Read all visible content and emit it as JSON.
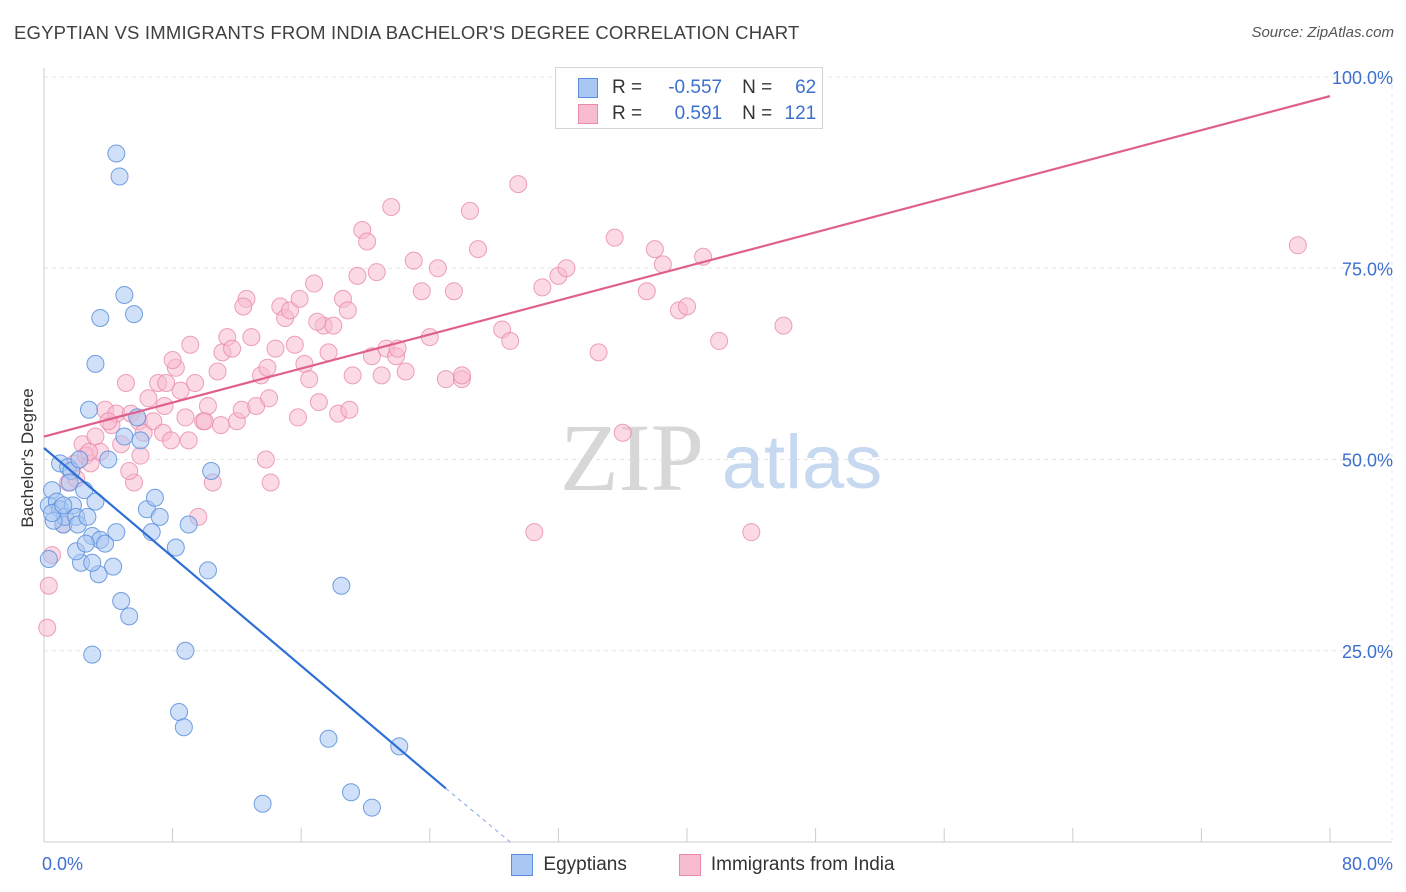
{
  "header": {
    "title": "EGYPTIAN VS IMMIGRANTS FROM INDIA BACHELOR'S DEGREE CORRELATION CHART",
    "source": "Source: ZipAtlas.com"
  },
  "watermark": {
    "zip": "ZIP",
    "atlas": "atlas"
  },
  "legend_top": {
    "rows": [
      {
        "r_label": "R =",
        "r_value": "-0.557",
        "n_label": "N =",
        "n_value": "62"
      },
      {
        "r_label": "R =",
        "r_value": "0.591",
        "n_label": "N =",
        "n_value": "121"
      }
    ]
  },
  "legend_bottom": {
    "items": [
      "Egyptians",
      "Immigrants from India"
    ]
  },
  "colors": {
    "blue_fill": "#a9c7f2",
    "blue_stroke": "#5b8fdc",
    "blue_line": "#2e6fd6",
    "pink_fill": "#f7bccf",
    "pink_stroke": "#e98aab",
    "pink_line": "#e0608c",
    "axis_label": "#3d6fcf",
    "grid": "#e6e6e6"
  },
  "chart_data": {
    "type": "scatter",
    "title": "EGYPTIAN VS IMMIGRANTS FROM INDIA BACHELOR'S DEGREE CORRELATION CHART",
    "xlabel": "",
    "ylabel": "Bachelor's Degree",
    "xlim": [
      0,
      80
    ],
    "ylim": [
      0,
      100
    ],
    "x_tick_labels": [
      "0.0%",
      "80.0%"
    ],
    "y_ticks": [
      25,
      50,
      75,
      100
    ],
    "y_tick_labels": [
      "25.0%",
      "50.0%",
      "75.0%",
      "100.0%"
    ],
    "grid": true,
    "series": [
      {
        "name": "Egyptians",
        "r": -0.557,
        "n": 62,
        "trend": {
          "x": [
            0,
            25.0
          ],
          "y": [
            51.5,
            7.0
          ],
          "dash_to": {
            "x": 29.0,
            "y": 0
          }
        },
        "points": [
          [
            0.3,
            44.0
          ],
          [
            0.5,
            46.0
          ],
          [
            0.8,
            44.5
          ],
          [
            1.0,
            43.5
          ],
          [
            1.2,
            41.5
          ],
          [
            1.3,
            42.5
          ],
          [
            0.6,
            42.0
          ],
          [
            1.0,
            49.5
          ],
          [
            1.5,
            49.0
          ],
          [
            1.7,
            48.5
          ],
          [
            1.8,
            44.0
          ],
          [
            1.6,
            47.0
          ],
          [
            2.0,
            42.5
          ],
          [
            2.1,
            41.5
          ],
          [
            2.3,
            36.5
          ],
          [
            2.5,
            46.0
          ],
          [
            2.0,
            38.0
          ],
          [
            2.7,
            42.5
          ],
          [
            2.2,
            50.0
          ],
          [
            3.0,
            40.0
          ],
          [
            3.2,
            44.5
          ],
          [
            3.4,
            35.0
          ],
          [
            3.5,
            39.5
          ],
          [
            3.8,
            39.0
          ],
          [
            3.0,
            36.5
          ],
          [
            4.0,
            50.0
          ],
          [
            4.3,
            36.0
          ],
          [
            4.5,
            40.5
          ],
          [
            4.8,
            31.5
          ],
          [
            5.0,
            53.0
          ],
          [
            5.3,
            29.5
          ],
          [
            5.8,
            55.5
          ],
          [
            6.0,
            52.5
          ],
          [
            6.4,
            43.5
          ],
          [
            6.7,
            40.5
          ],
          [
            6.9,
            45.0
          ],
          [
            7.2,
            42.5
          ],
          [
            8.2,
            38.5
          ],
          [
            8.4,
            17.0
          ],
          [
            8.7,
            15.0
          ],
          [
            8.8,
            25.0
          ],
          [
            9.0,
            41.5
          ],
          [
            10.2,
            35.5
          ],
          [
            10.4,
            48.5
          ],
          [
            2.8,
            56.5
          ],
          [
            3.2,
            62.5
          ],
          [
            3.5,
            68.5
          ],
          [
            4.5,
            90.0
          ],
          [
            4.7,
            87.0
          ],
          [
            5.0,
            71.5
          ],
          [
            5.6,
            69.0
          ],
          [
            3.0,
            24.5
          ],
          [
            13.6,
            5.0
          ],
          [
            17.7,
            13.5
          ],
          [
            18.5,
            33.5
          ],
          [
            19.1,
            6.5
          ],
          [
            20.4,
            4.5
          ],
          [
            22.1,
            12.5
          ],
          [
            0.3,
            37.0
          ],
          [
            0.5,
            43.0
          ],
          [
            1.2,
            44.0
          ],
          [
            2.6,
            39.0
          ]
        ]
      },
      {
        "name": "Immigrants from India",
        "r": 0.591,
        "n": 121,
        "trend": {
          "x": [
            0,
            80.0
          ],
          "y": [
            53.0,
            97.5
          ]
        },
        "points": [
          [
            0.2,
            28.0
          ],
          [
            0.3,
            33.5
          ],
          [
            0.5,
            37.5
          ],
          [
            1.2,
            41.5
          ],
          [
            1.5,
            47.0
          ],
          [
            1.9,
            49.5
          ],
          [
            2.4,
            52.0
          ],
          [
            2.6,
            50.5
          ],
          [
            2.9,
            49.5
          ],
          [
            3.2,
            53.0
          ],
          [
            3.5,
            51.0
          ],
          [
            3.8,
            56.5
          ],
          [
            4.2,
            54.5
          ],
          [
            4.5,
            56.0
          ],
          [
            4.8,
            52.0
          ],
          [
            5.1,
            60.0
          ],
          [
            5.4,
            56.0
          ],
          [
            5.6,
            47.0
          ],
          [
            5.9,
            55.0
          ],
          [
            6.2,
            53.5
          ],
          [
            6.5,
            58.0
          ],
          [
            6.8,
            55.0
          ],
          [
            7.1,
            60.0
          ],
          [
            7.4,
            53.5
          ],
          [
            7.6,
            60.0
          ],
          [
            7.9,
            52.5
          ],
          [
            8.2,
            62.0
          ],
          [
            8.5,
            59.0
          ],
          [
            8.8,
            55.5
          ],
          [
            9.1,
            65.0
          ],
          [
            9.4,
            60.0
          ],
          [
            9.6,
            42.5
          ],
          [
            9.9,
            55.0
          ],
          [
            10.2,
            57.0
          ],
          [
            10.5,
            47.0
          ],
          [
            10.8,
            61.5
          ],
          [
            11.1,
            64.0
          ],
          [
            11.4,
            66.0
          ],
          [
            11.7,
            64.5
          ],
          [
            12.0,
            55.0
          ],
          [
            12.3,
            56.5
          ],
          [
            12.6,
            71.0
          ],
          [
            12.9,
            66.0
          ],
          [
            13.2,
            57.0
          ],
          [
            13.5,
            61.0
          ],
          [
            13.8,
            50.0
          ],
          [
            14.1,
            47.0
          ],
          [
            14.4,
            64.5
          ],
          [
            14.7,
            70.0
          ],
          [
            15.0,
            68.5
          ],
          [
            15.3,
            69.5
          ],
          [
            15.6,
            65.0
          ],
          [
            15.9,
            71.0
          ],
          [
            16.2,
            62.5
          ],
          [
            16.5,
            60.5
          ],
          [
            16.8,
            73.0
          ],
          [
            17.1,
            57.5
          ],
          [
            17.4,
            67.5
          ],
          [
            17.7,
            64.0
          ],
          [
            18.0,
            67.5
          ],
          [
            18.3,
            56.0
          ],
          [
            18.6,
            71.0
          ],
          [
            18.9,
            69.5
          ],
          [
            19.2,
            61.0
          ],
          [
            19.5,
            74.0
          ],
          [
            19.8,
            80.0
          ],
          [
            20.1,
            78.5
          ],
          [
            20.4,
            63.5
          ],
          [
            20.7,
            74.5
          ],
          [
            21.0,
            61.0
          ],
          [
            21.3,
            64.5
          ],
          [
            21.6,
            83.0
          ],
          [
            21.9,
            63.5
          ],
          [
            22.5,
            61.5
          ],
          [
            23.0,
            76.0
          ],
          [
            23.5,
            72.0
          ],
          [
            24.0,
            66.0
          ],
          [
            24.5,
            75.0
          ],
          [
            25.0,
            60.5
          ],
          [
            25.5,
            72.0
          ],
          [
            26.0,
            60.5
          ],
          [
            26.5,
            82.5
          ],
          [
            27.0,
            77.5
          ],
          [
            28.5,
            67.0
          ],
          [
            29.0,
            65.5
          ],
          [
            29.5,
            86.0
          ],
          [
            30.5,
            40.5
          ],
          [
            31.0,
            72.5
          ],
          [
            32.0,
            74.0
          ],
          [
            32.5,
            75.0
          ],
          [
            34.5,
            64.0
          ],
          [
            35.5,
            79.0
          ],
          [
            36.0,
            53.5
          ],
          [
            37.5,
            72.0
          ],
          [
            38.0,
            77.5
          ],
          [
            38.5,
            75.5
          ],
          [
            39.5,
            69.5
          ],
          [
            40.0,
            70.0
          ],
          [
            41.0,
            76.5
          ],
          [
            42.0,
            65.5
          ],
          [
            44.0,
            40.5
          ],
          [
            46.0,
            67.5
          ],
          [
            11.0,
            54.5
          ],
          [
            12.4,
            70.0
          ],
          [
            13.9,
            62.0
          ],
          [
            2.0,
            47.5
          ],
          [
            4.0,
            55.0
          ],
          [
            6.0,
            50.5
          ],
          [
            7.5,
            57.0
          ],
          [
            9.0,
            52.5
          ],
          [
            10.0,
            55.0
          ],
          [
            14.0,
            58.0
          ],
          [
            15.8,
            55.5
          ],
          [
            17.0,
            68.0
          ],
          [
            19.0,
            56.5
          ],
          [
            22.0,
            64.5
          ],
          [
            26.0,
            61.0
          ],
          [
            2.8,
            51.0
          ],
          [
            5.3,
            48.5
          ],
          [
            8.0,
            63.0
          ],
          [
            78.0,
            78.0
          ]
        ]
      }
    ]
  }
}
